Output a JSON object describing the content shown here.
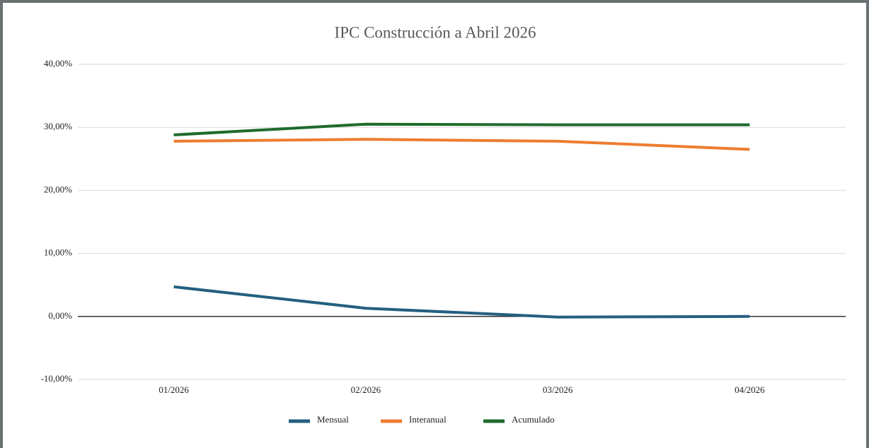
{
  "chart_data": {
    "type": "line",
    "title": "IPC Construcción a Abril 2026",
    "categories": [
      "01/2026",
      "02/2026",
      "03/2026",
      "04/2026"
    ],
    "series": [
      {
        "name": "Mensual",
        "color": "#245f80",
        "values": [
          4.7,
          1.3,
          -0.1,
          0.0
        ]
      },
      {
        "name": "Interanual",
        "color": "#ed7d31",
        "values": [
          27.8,
          28.1,
          27.8,
          26.5
        ]
      },
      {
        "name": "Acumulado",
        "color": "#1e6b2c",
        "values": [
          28.8,
          30.5,
          30.4,
          30.4
        ]
      }
    ],
    "ylim": [
      -10,
      40
    ],
    "yticks": [
      {
        "value": -10,
        "label": "-10,00%"
      },
      {
        "value": 0,
        "label": "0,00%"
      },
      {
        "value": 10,
        "label": "10,00%"
      },
      {
        "value": 20,
        "label": "20,00%"
      },
      {
        "value": 30,
        "label": "30,00%"
      },
      {
        "value": 40,
        "label": "40,00%"
      }
    ],
    "grid": true,
    "legend": "bottom"
  }
}
